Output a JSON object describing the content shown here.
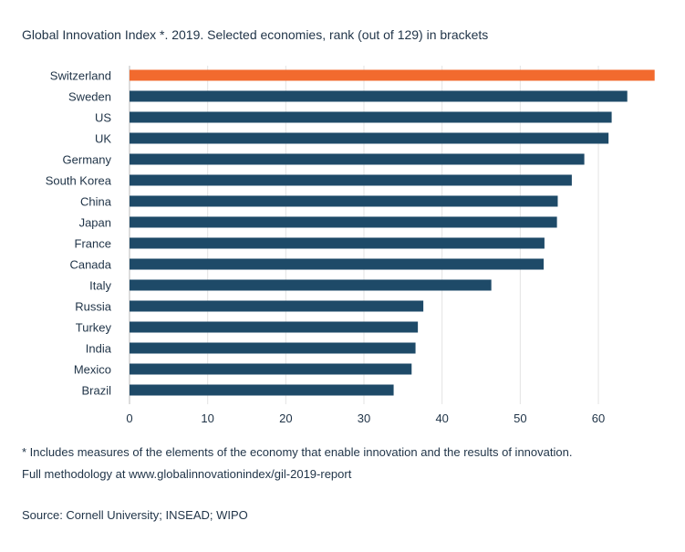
{
  "chart_data": {
    "type": "bar",
    "orientation": "horizontal",
    "title": "Global Innovation Index *. 2019. Selected economies, rank (out of 129) in brackets",
    "categories": [
      "Switzerland",
      "Sweden",
      "US",
      "UK",
      "Germany",
      "South Korea",
      "China",
      "Japan",
      "France",
      "Canada",
      "Italy",
      "Russia",
      "Turkey",
      "India",
      "Mexico",
      "Brazil"
    ],
    "values": [
      67.2,
      63.7,
      61.7,
      61.3,
      58.2,
      56.6,
      54.8,
      54.7,
      53.1,
      53.0,
      46.3,
      37.6,
      36.9,
      36.6,
      36.1,
      33.8
    ],
    "highlight_index": 0,
    "colors": {
      "highlight": "#f26a2e",
      "bar": "#1e4a68",
      "grid": "#e3e3e3",
      "axis": "#bbbbbb"
    },
    "xlim": [
      0,
      67
    ],
    "xticks": [
      0,
      10,
      20,
      30,
      40,
      50,
      60
    ],
    "grid": true,
    "xlabel": "",
    "ylabel": ""
  },
  "footnote_1": "* Includes measures of the elements of the economy that enable innovation and the results of innovation.",
  "footnote_2": "Full methodology at www.globalinnovationindex/gil-2019-report",
  "source": "Source: Cornell University; INSEAD; WIPO"
}
